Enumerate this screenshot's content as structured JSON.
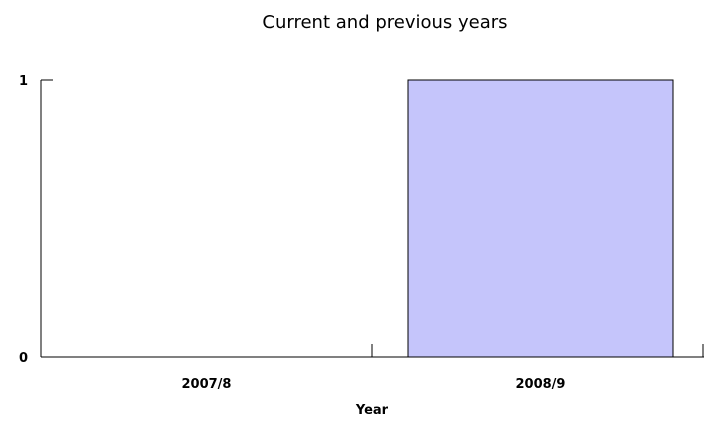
{
  "chart_data": {
    "type": "bar",
    "title": "Current and previous years",
    "xlabel": "Year",
    "ylabel": "",
    "categories": [
      "2007/8",
      "2008/9"
    ],
    "values": [
      0,
      1
    ],
    "ylim": [
      0,
      1
    ],
    "yticks": [
      0,
      1
    ],
    "grid": false,
    "legend": "none",
    "colors": {
      "bar_fill": "#c5c5fb",
      "bar_stroke": "#000000",
      "axis": "#000000",
      "text": "#000000"
    }
  }
}
